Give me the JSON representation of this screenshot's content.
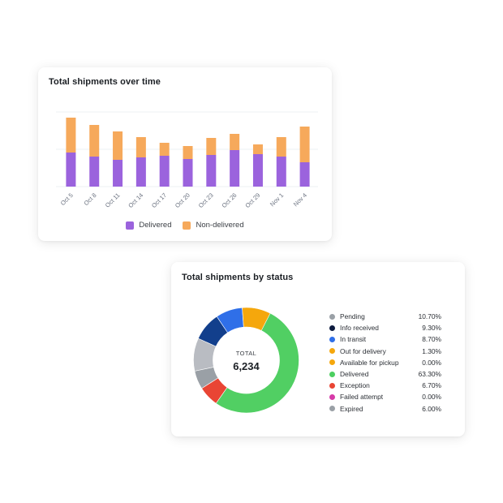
{
  "chart_data": [
    {
      "type": "bar",
      "stacked": true,
      "title": "Total shipments over time",
      "categories": [
        "Oct 5",
        "Oct 8",
        "Oct 11",
        "Oct 14",
        "Oct 17",
        "Oct 20",
        "Oct 23",
        "Oct 26",
        "Oct 29",
        "Nov 1",
        "Nov 4"
      ],
      "series": [
        {
          "name": "Delivered",
          "color": "#9b63dd",
          "values": [
            42,
            37,
            33,
            36,
            38,
            34,
            39,
            45,
            40,
            37,
            30
          ]
        },
        {
          "name": "Non-delivered",
          "color": "#f6a95b",
          "values": [
            43,
            39,
            35,
            25,
            16,
            16,
            21,
            20,
            12,
            24,
            44
          ]
        }
      ],
      "ylim": [
        0,
        92
      ],
      "grid": true,
      "legend": "bottom"
    },
    {
      "type": "pie",
      "donut": true,
      "title": "Total shipments by status",
      "center_label": "TOTAL",
      "center_value": "6,234",
      "slices": [
        {
          "label": "Pending",
          "value": 10.7,
          "display": "10.70%",
          "color": "#b9bcc2",
          "dot": "#9aa0a6"
        },
        {
          "label": "Info received",
          "value": 9.3,
          "display": "9.30%",
          "color": "#123f8c",
          "dot": "#0d1b3e"
        },
        {
          "label": "In transit",
          "value": 8.7,
          "display": "8.70%",
          "color": "#2f6fe8",
          "dot": "#2f6fe8"
        },
        {
          "label": "Out for delivery",
          "value": 1.3,
          "display": "1.30%",
          "color": "#f5a70c",
          "dot": "#f5a70c"
        },
        {
          "label": "Available for pickup",
          "value": 0.0,
          "display": "0.00%",
          "color": "#f5a70c",
          "dot": "#f5a70c"
        },
        {
          "label": "Delivered",
          "value": 63.3,
          "display": "63.30%",
          "color": "#51cf63",
          "dot": "#4ccf60"
        },
        {
          "label": "Exception",
          "value": 6.7,
          "display": "6.70%",
          "color": "#e94534",
          "dot": "#e94534"
        },
        {
          "label": "Failed attempt",
          "value": 0.0,
          "display": "0.00%",
          "color": "#d63aa8",
          "dot": "#d63aa8"
        },
        {
          "label": "Expired",
          "value": 6.0,
          "display": "6.00%",
          "color": "#9aa0a6",
          "dot": "#9aa0a6"
        }
      ],
      "legend": "right"
    }
  ]
}
